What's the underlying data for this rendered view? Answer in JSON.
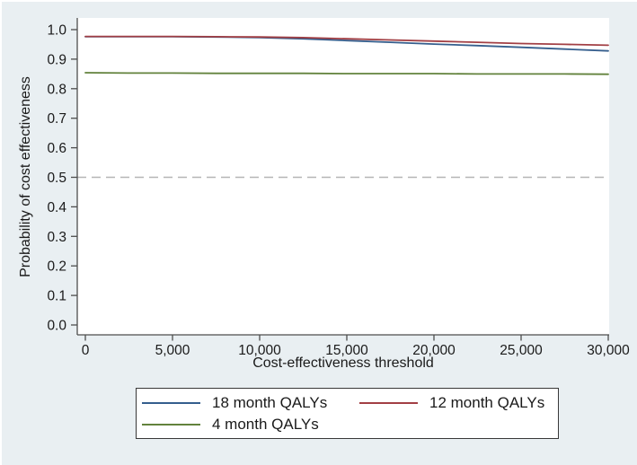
{
  "style": {
    "background": "#e9eff2",
    "plot_background": "#ffffff",
    "axis_color": "#4d4d4d",
    "text_color": "#1a1a1a"
  },
  "chart_data": {
    "type": "line",
    "title": "",
    "xlabel": "Cost-effectiveness threshold",
    "ylabel": "Probability of cost effectiveness",
    "xlim": [
      0,
      30000
    ],
    "ylim": [
      0,
      1.0
    ],
    "grid": false,
    "legend_position": "bottom",
    "x_tick_values": [
      0,
      5000,
      10000,
      15000,
      20000,
      25000,
      30000
    ],
    "x_tick_labels": [
      "0",
      "5,000",
      "10,000",
      "15,000",
      "20,000",
      "25,000",
      "30,000"
    ],
    "y_tick_values": [
      0.0,
      0.1,
      0.2,
      0.3,
      0.4,
      0.5,
      0.6,
      0.7,
      0.8,
      0.9,
      1.0
    ],
    "y_tick_labels": [
      "0.0",
      "0.1",
      "0.2",
      "0.3",
      "0.4",
      "0.5",
      "0.6",
      "0.7",
      "0.8",
      "0.9",
      "1.0"
    ],
    "reference_line": {
      "y": 0.5,
      "style": "dashed",
      "color": "#b5b5b5"
    },
    "x": [
      0,
      2500,
      5000,
      7500,
      10000,
      12500,
      15000,
      17500,
      20000,
      22500,
      25000,
      27500,
      30000
    ],
    "series": [
      {
        "name": "18 month QALYs",
        "color": "#355e8d",
        "values": [
          0.976,
          0.976,
          0.976,
          0.975,
          0.973,
          0.969,
          0.963,
          0.957,
          0.951,
          0.946,
          0.94,
          0.934,
          0.928
        ]
      },
      {
        "name": "12 month QALYs",
        "color": "#a23f44",
        "values": [
          0.977,
          0.977,
          0.977,
          0.976,
          0.975,
          0.973,
          0.969,
          0.965,
          0.961,
          0.957,
          0.953,
          0.95,
          0.947
        ]
      },
      {
        "name": "4 month QALYs",
        "color": "#62823c",
        "values": [
          0.854,
          0.853,
          0.853,
          0.852,
          0.852,
          0.852,
          0.851,
          0.851,
          0.851,
          0.85,
          0.85,
          0.85,
          0.849
        ]
      }
    ]
  }
}
